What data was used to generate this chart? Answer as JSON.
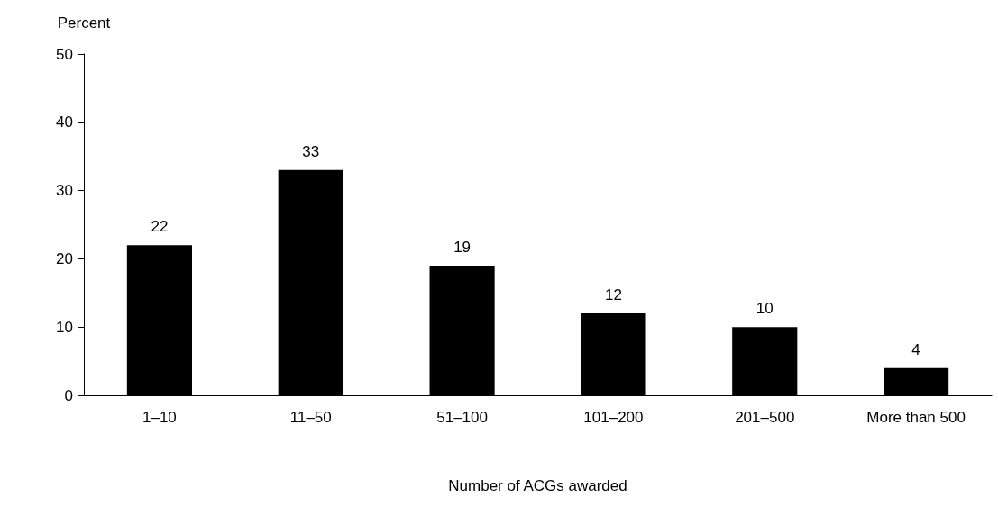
{
  "chart_data": {
    "type": "bar",
    "xlabel": "Number of ACGs awarded",
    "ylabel": "Percent",
    "categories": [
      "1–10",
      "11–50",
      "51–100",
      "101–200",
      "201–500",
      "More than 500"
    ],
    "values": [
      22,
      33,
      19,
      12,
      10,
      4
    ],
    "color": "#000000",
    "ylim": [
      0,
      50
    ],
    "yticks": [
      0,
      10,
      20,
      30,
      40,
      50
    ],
    "grid": false,
    "data_labels": true
  }
}
